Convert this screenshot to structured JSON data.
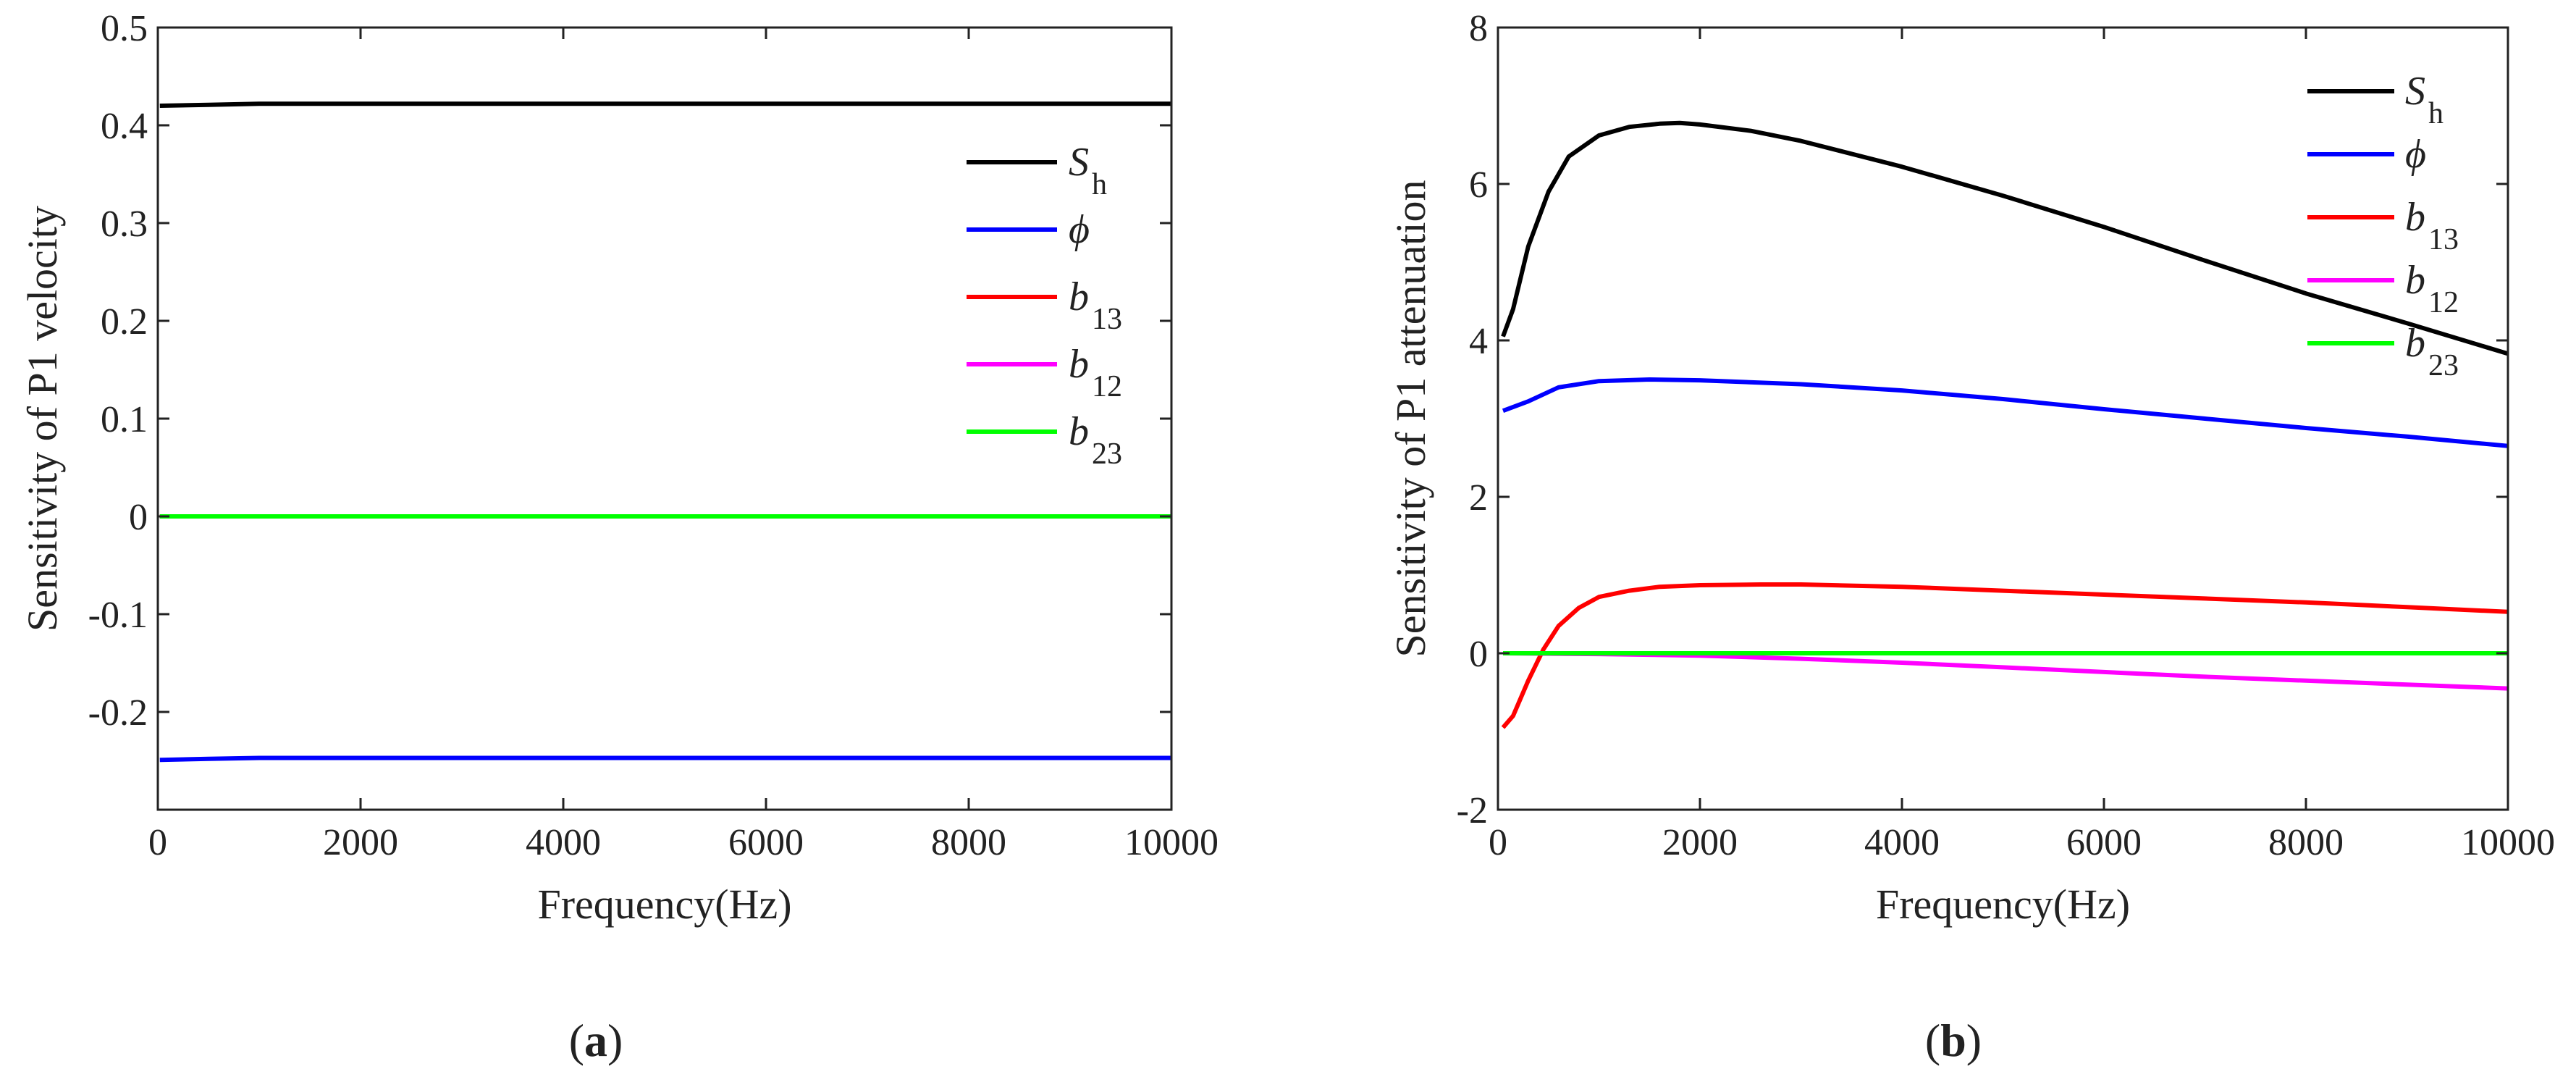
{
  "colors": {
    "S_h": "#000000",
    "phi": "#0000ff",
    "b13": "#ff0000",
    "b12": "#ff00ff",
    "b23": "#00ff00",
    "axis": "#222222"
  },
  "chart_data": [
    {
      "id": "a",
      "type": "line",
      "panel_label": {
        "open": "(",
        "letter": "a",
        "close": ")"
      },
      "title": "",
      "xlabel": "Frequency(Hz)",
      "ylabel": "Sensitivity of  P1 velocity",
      "xlim": [
        0,
        10000
      ],
      "ylim": [
        -0.3,
        0.5
      ],
      "xticks": [
        0,
        2000,
        4000,
        6000,
        8000,
        10000
      ],
      "xtick_labels": [
        "0",
        "2000",
        "4000",
        "6000",
        "8000",
        "10000"
      ],
      "yticks": [
        -0.2,
        -0.1,
        0,
        0.1,
        0.2,
        0.3,
        0.4,
        0.5
      ],
      "ytick_labels": [
        "-0.2",
        "-0.1",
        "0",
        "0.1",
        "0.2",
        "0.3",
        "0.4",
        "0.5"
      ],
      "grid": false,
      "legend_position": "right",
      "series": [
        {
          "key": "S_h",
          "name": "S_h",
          "legend_main": "S",
          "legend_sub": "h",
          "x": [
            20,
            500,
            1000,
            2000,
            4000,
            6000,
            8000,
            10000
          ],
          "y": [
            0.42,
            0.421,
            0.422,
            0.422,
            0.422,
            0.422,
            0.422,
            0.422
          ]
        },
        {
          "key": "phi",
          "name": "phi",
          "legend_main": "ϕ",
          "legend_sub": "",
          "x": [
            20,
            500,
            1000,
            2000,
            4000,
            6000,
            8000,
            10000
          ],
          "y": [
            -0.249,
            -0.248,
            -0.247,
            -0.247,
            -0.247,
            -0.247,
            -0.247,
            -0.247
          ]
        },
        {
          "key": "b13",
          "name": "b_13",
          "legend_main": "b",
          "legend_sub": "13",
          "x": [
            20,
            10000
          ],
          "y": [
            0,
            0
          ]
        },
        {
          "key": "b12",
          "name": "b_12",
          "legend_main": "b",
          "legend_sub": "12",
          "x": [
            20,
            10000
          ],
          "y": [
            0,
            0
          ]
        },
        {
          "key": "b23",
          "name": "b_23",
          "legend_main": "b",
          "legend_sub": "23",
          "x": [
            20,
            10000
          ],
          "y": [
            0,
            0
          ]
        }
      ]
    },
    {
      "id": "b",
      "type": "line",
      "panel_label": {
        "open": "(",
        "letter": "b",
        "close": ")"
      },
      "title": "",
      "xlabel": "Frequency(Hz)",
      "ylabel": "Sensitivity of  P1 attenuation",
      "xlim": [
        0,
        10000
      ],
      "ylim": [
        -2,
        8
      ],
      "xticks": [
        0,
        2000,
        4000,
        6000,
        8000,
        10000
      ],
      "xtick_labels": [
        "0",
        "2000",
        "4000",
        "6000",
        "8000",
        "10000"
      ],
      "yticks": [
        -2,
        0,
        2,
        4,
        6,
        8
      ],
      "ytick_labels": [
        "-2",
        "0",
        "2",
        "4",
        "6",
        "8"
      ],
      "grid": false,
      "legend_position": "top-right",
      "series": [
        {
          "key": "S_h",
          "name": "S_h",
          "legend_main": "S",
          "legend_sub": "h",
          "x": [
            50,
            150,
            300,
            500,
            700,
            1000,
            1300,
            1600,
            1800,
            2000,
            2500,
            3000,
            4000,
            5000,
            6000,
            7000,
            8000,
            9000,
            10000
          ],
          "y": [
            4.05,
            4.4,
            5.2,
            5.9,
            6.35,
            6.62,
            6.73,
            6.77,
            6.78,
            6.76,
            6.68,
            6.55,
            6.22,
            5.85,
            5.45,
            5.02,
            4.6,
            4.22,
            3.83
          ]
        },
        {
          "key": "phi",
          "name": "phi",
          "legend_main": "ϕ",
          "legend_sub": "",
          "x": [
            50,
            300,
            600,
            1000,
            1500,
            2000,
            3000,
            4000,
            5000,
            6000,
            7000,
            8000,
            9000,
            10000
          ],
          "y": [
            3.1,
            3.22,
            3.4,
            3.48,
            3.5,
            3.49,
            3.44,
            3.36,
            3.25,
            3.12,
            3.0,
            2.88,
            2.77,
            2.65
          ]
        },
        {
          "key": "b13",
          "name": "b_13",
          "legend_main": "b",
          "legend_sub": "13",
          "x": [
            50,
            150,
            300,
            450,
            600,
            800,
            1000,
            1300,
            1600,
            2000,
            2600,
            3000,
            4000,
            5000,
            6000,
            7000,
            8000,
            9000,
            10000
          ],
          "y": [
            -0.95,
            -0.8,
            -0.35,
            0.05,
            0.35,
            0.58,
            0.72,
            0.8,
            0.85,
            0.87,
            0.88,
            0.88,
            0.85,
            0.8,
            0.75,
            0.7,
            0.65,
            0.59,
            0.53
          ]
        },
        {
          "key": "b12",
          "name": "b_12",
          "legend_main": "b",
          "legend_sub": "12",
          "x": [
            50,
            1000,
            2000,
            3000,
            4000,
            5000,
            6000,
            7000,
            8000,
            9000,
            10000
          ],
          "y": [
            0,
            -0.01,
            -0.03,
            -0.07,
            -0.12,
            -0.18,
            -0.24,
            -0.3,
            -0.35,
            -0.4,
            -0.45
          ]
        },
        {
          "key": "b23",
          "name": "b_23",
          "legend_main": "b",
          "legend_sub": "23",
          "x": [
            50,
            10000
          ],
          "y": [
            0,
            0
          ]
        }
      ]
    }
  ]
}
